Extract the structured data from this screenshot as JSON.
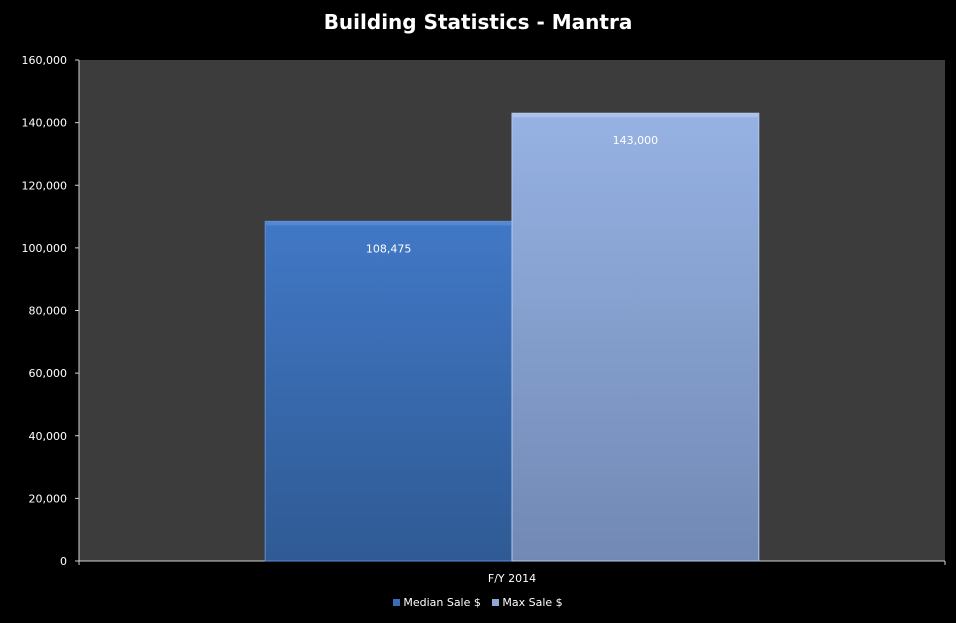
{
  "chart_data": {
    "type": "bar",
    "title": "Building Statistics - Mantra",
    "categories": [
      "F/Y 2014"
    ],
    "series": [
      {
        "name": "Median Sale $",
        "values": [
          108475
        ],
        "value_labels": [
          "108,475"
        ],
        "color": "#3a6db5"
      },
      {
        "name": "Max Sale $",
        "values": [
          143000
        ],
        "value_labels": [
          "143,000"
        ],
        "color": "#8ea8d8"
      }
    ],
    "y_ticks": [
      "0",
      "20,000",
      "40,000",
      "60,000",
      "80,000",
      "100,000",
      "120,000",
      "140,000",
      "160,000"
    ],
    "ylim": [
      0,
      160000
    ],
    "xlabel": "",
    "ylabel": "",
    "grid": false,
    "legend_position": "bottom",
    "plot_background": "#3c3c3c",
    "background": "#000000"
  }
}
